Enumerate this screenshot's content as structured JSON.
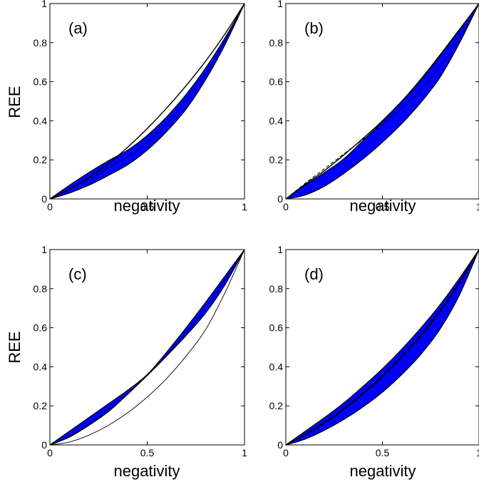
{
  "chart_data": [
    {
      "type": "area",
      "panel_label": "(a)",
      "xlabel": "negativity",
      "ylabel": "REE",
      "xlim": [
        0,
        1
      ],
      "ylim": [
        0,
        1
      ],
      "xticks": [
        "0",
        "0.5",
        "1"
      ],
      "yticks": [
        "0",
        "0.2",
        "0.4",
        "0.6",
        "0.8",
        "1"
      ],
      "region": {
        "fill": "#0000ff",
        "upper": {
          "x": [
            0,
            0.1,
            0.2,
            0.3,
            0.4,
            0.5,
            0.6,
            0.7,
            0.8,
            0.9,
            1
          ],
          "y": [
            0,
            0.07,
            0.135,
            0.195,
            0.25,
            0.325,
            0.42,
            0.535,
            0.67,
            0.825,
            1
          ]
        },
        "lower": {
          "x": [
            0,
            0.1,
            0.2,
            0.3,
            0.4,
            0.5,
            0.6,
            0.7,
            0.8,
            0.9,
            1
          ],
          "y": [
            0,
            0.03,
            0.07,
            0.12,
            0.175,
            0.25,
            0.345,
            0.46,
            0.61,
            0.79,
            1
          ]
        }
      },
      "reference_curve": {
        "style": "solid",
        "x": [
          0,
          0.1,
          0.2,
          0.3,
          0.4,
          0.5,
          0.6,
          0.7,
          0.8,
          0.9,
          1
        ],
        "y": [
          0,
          0.05,
          0.11,
          0.18,
          0.265,
          0.36,
          0.465,
          0.58,
          0.705,
          0.845,
          1
        ]
      },
      "dashed_curve": {
        "x": [
          0,
          0.1,
          0.2,
          0.3,
          0.4,
          0.5,
          0.6,
          0.7,
          0.8,
          0.9,
          1
        ],
        "y": [
          0,
          0.05,
          0.1,
          0.158,
          0.215,
          0.29,
          0.385,
          0.5,
          0.64,
          0.81,
          1
        ]
      }
    },
    {
      "type": "area",
      "panel_label": "(b)",
      "xlabel": "negativity",
      "ylabel": "",
      "xlim": [
        0,
        1
      ],
      "ylim": [
        0,
        1
      ],
      "xticks": [
        "0",
        "0.5",
        "1"
      ],
      "yticks": [
        "0",
        "0.2",
        "0.4",
        "0.6",
        "0.8",
        "1"
      ],
      "region": {
        "fill": "#0000ff",
        "upper": {
          "x": [
            0,
            0.1,
            0.2,
            0.3,
            0.4,
            0.5,
            0.6,
            0.7,
            0.8,
            0.9,
            1
          ],
          "y": [
            0,
            0.07,
            0.135,
            0.205,
            0.3,
            0.395,
            0.5,
            0.615,
            0.74,
            0.87,
            1
          ]
        },
        "lower": {
          "x": [
            0,
            0.1,
            0.2,
            0.3,
            0.4,
            0.5,
            0.6,
            0.7,
            0.8,
            0.9,
            1
          ],
          "y": [
            0,
            0.02,
            0.065,
            0.13,
            0.205,
            0.29,
            0.385,
            0.495,
            0.625,
            0.8,
            1
          ]
        }
      },
      "reference_curve": {
        "style": "solid",
        "x": [
          0,
          0.1,
          0.2,
          0.3,
          0.4,
          0.5,
          0.6,
          0.7,
          0.8,
          0.9,
          1
        ],
        "y": [
          0,
          0.075,
          0.145,
          0.225,
          0.31,
          0.4,
          0.5,
          0.61,
          0.735,
          0.865,
          1
        ]
      },
      "dashed_curve": {
        "x": [
          0,
          0.1,
          0.2,
          0.3,
          0.4,
          0.5,
          0.6,
          0.7,
          0.8,
          0.9,
          1
        ],
        "y": [
          0,
          0.08,
          0.155,
          0.23,
          0.305,
          0.38,
          0.465,
          0.565,
          0.68,
          0.825,
          1
        ]
      }
    },
    {
      "type": "area",
      "panel_label": "(c)",
      "xlabel": "negativity",
      "ylabel": "REE",
      "xlim": [
        0,
        1
      ],
      "ylim": [
        0,
        1
      ],
      "xticks": [
        "0",
        "0.5",
        "1"
      ],
      "yticks": [
        "0",
        "0.2",
        "0.4",
        "0.6",
        "0.8",
        "1"
      ],
      "region": {
        "fill": "#0000ff",
        "upper": {
          "x": [
            0,
            0.1,
            0.2,
            0.3,
            0.4,
            0.5,
            0.6,
            0.7,
            0.8,
            0.9,
            1
          ],
          "y": [
            0,
            0.07,
            0.14,
            0.21,
            0.28,
            0.36,
            0.475,
            0.6,
            0.73,
            0.865,
            1
          ]
        },
        "lower": {
          "x": [
            0,
            0.1,
            0.2,
            0.3,
            0.4,
            0.5,
            0.6,
            0.7,
            0.8,
            0.9,
            1
          ],
          "y": [
            0,
            0.04,
            0.1,
            0.17,
            0.26,
            0.355,
            0.455,
            0.56,
            0.675,
            0.82,
            1
          ]
        }
      },
      "reference_curve": {
        "style": "solid-thin",
        "x": [
          0,
          0.1,
          0.2,
          0.3,
          0.4,
          0.5,
          0.6,
          0.7,
          0.8,
          0.9,
          1
        ],
        "y": [
          0,
          0.015,
          0.05,
          0.1,
          0.165,
          0.245,
          0.34,
          0.455,
          0.59,
          0.78,
          1
        ]
      },
      "dashed_curve": {
        "x": [
          0,
          0.1,
          0.2,
          0.3,
          0.4,
          0.5,
          0.6,
          0.7,
          0.8,
          0.9,
          1
        ],
        "y": [
          0,
          0.045,
          0.105,
          0.18,
          0.265,
          0.36,
          0.46,
          0.575,
          0.7,
          0.845,
          1
        ]
      }
    },
    {
      "type": "area",
      "panel_label": "(d)",
      "xlabel": "negativity",
      "ylabel": "",
      "xlim": [
        0,
        1
      ],
      "ylim": [
        0,
        1
      ],
      "xticks": [
        "0",
        "0.5",
        "1"
      ],
      "yticks": [
        "0",
        "0.2",
        "0.4",
        "0.6",
        "0.8",
        "1"
      ],
      "region": {
        "fill": "#0000ff",
        "upper": {
          "x": [
            0,
            0.1,
            0.2,
            0.3,
            0.4,
            0.5,
            0.6,
            0.7,
            0.8,
            0.9,
            1
          ],
          "y": [
            0,
            0.07,
            0.14,
            0.215,
            0.3,
            0.39,
            0.49,
            0.6,
            0.72,
            0.855,
            1
          ]
        },
        "lower": {
          "x": [
            0,
            0.1,
            0.2,
            0.3,
            0.4,
            0.5,
            0.6,
            0.7,
            0.8,
            0.9,
            1
          ],
          "y": [
            0,
            0.03,
            0.075,
            0.13,
            0.195,
            0.27,
            0.36,
            0.465,
            0.595,
            0.77,
            1
          ]
        }
      },
      "reference_curve": {
        "style": "solid",
        "x": [
          0,
          0.1,
          0.2,
          0.3,
          0.4,
          0.5,
          0.6,
          0.7,
          0.8,
          0.9,
          1
        ],
        "y": [
          0,
          0.055,
          0.115,
          0.185,
          0.265,
          0.355,
          0.455,
          0.565,
          0.69,
          0.835,
          1
        ]
      },
      "dashed_curve": {
        "x": [
          0,
          0.1,
          0.2,
          0.3,
          0.4,
          0.5,
          0.6,
          0.7,
          0.8,
          0.9,
          1
        ],
        "y": [
          0,
          0.05,
          0.11,
          0.18,
          0.26,
          0.345,
          0.445,
          0.555,
          0.68,
          0.825,
          1
        ]
      }
    }
  ]
}
